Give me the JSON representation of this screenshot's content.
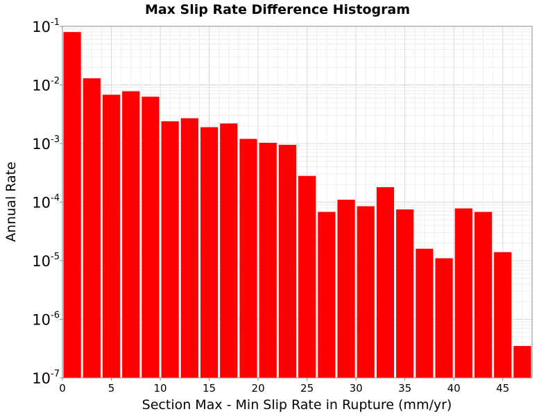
{
  "chart_data": {
    "type": "bar",
    "title": "Max Slip Rate Difference Histogram",
    "xlabel": "Section Max - Min Slip Rate in Rupture (mm/yr)",
    "ylabel": "Annual Rate",
    "x_ticks": [
      "0",
      "5",
      "10",
      "15",
      "20",
      "25",
      "30",
      "35",
      "40",
      "45"
    ],
    "y_ticks": [
      {
        "base": "10",
        "exp": "-7"
      },
      {
        "base": "10",
        "exp": "-6"
      },
      {
        "base": "10",
        "exp": "-5"
      },
      {
        "base": "10",
        "exp": "-4"
      },
      {
        "base": "10",
        "exp": "-3"
      },
      {
        "base": "10",
        "exp": "-2"
      },
      {
        "base": "10",
        "exp": "-1"
      }
    ],
    "xlim": [
      0,
      48
    ],
    "ylim": [
      1e-07,
      0.1
    ],
    "log_y": true,
    "bin_width": 2,
    "grid": true,
    "legend": "none",
    "bar_color": "#ff0000",
    "bars": [
      {
        "x": 1,
        "value": 0.08
      },
      {
        "x": 3,
        "value": 0.013
      },
      {
        "x": 5,
        "value": 0.0068
      },
      {
        "x": 7,
        "value": 0.0078
      },
      {
        "x": 9,
        "value": 0.0063
      },
      {
        "x": 11,
        "value": 0.0024
      },
      {
        "x": 13,
        "value": 0.0027
      },
      {
        "x": 15,
        "value": 0.0019
      },
      {
        "x": 17,
        "value": 0.0022
      },
      {
        "x": 19,
        "value": 0.0012
      },
      {
        "x": 21,
        "value": 0.00103
      },
      {
        "x": 23,
        "value": 0.00095
      },
      {
        "x": 25,
        "value": 0.00028
      },
      {
        "x": 27,
        "value": 6.8e-05
      },
      {
        "x": 29,
        "value": 0.00011
      },
      {
        "x": 31,
        "value": 8.5e-05
      },
      {
        "x": 33,
        "value": 0.00018
      },
      {
        "x": 35,
        "value": 7.5e-05
      },
      {
        "x": 37,
        "value": 1.6e-05
      },
      {
        "x": 39,
        "value": 1.1e-05
      },
      {
        "x": 41,
        "value": 7.8e-05
      },
      {
        "x": 43,
        "value": 6.8e-05
      },
      {
        "x": 45,
        "value": 1.4e-05
      },
      {
        "x": 47,
        "value": 3.5e-07
      }
    ]
  }
}
